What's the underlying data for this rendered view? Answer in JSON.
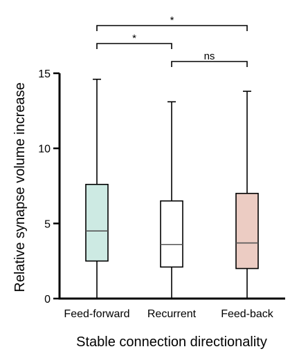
{
  "chart_data": {
    "type": "box",
    "xlabel": "Stable connection directionality",
    "ylabel": "Relative synapse volume increase",
    "ylim": [
      0,
      15
    ],
    "yticks": [
      0,
      5,
      10,
      15
    ],
    "categories": [
      "Feed-forward",
      "Recurrent",
      "Feed-back"
    ],
    "boxes": [
      {
        "category": "Feed-forward",
        "min": 0,
        "q1": 2.5,
        "median": 4.5,
        "q3": 7.6,
        "max": 14.6,
        "fill": "#cdeae3"
      },
      {
        "category": "Recurrent",
        "min": 0,
        "q1": 2.1,
        "median": 3.6,
        "q3": 6.5,
        "max": 13.1,
        "fill": "#ffffff"
      },
      {
        "category": "Feed-back",
        "min": 0,
        "q1": 2.0,
        "median": 3.7,
        "q3": 7.0,
        "max": 13.8,
        "fill": "#ecccc3"
      }
    ],
    "significance": [
      {
        "from": "Feed-forward",
        "to": "Feed-back",
        "label": "*"
      },
      {
        "from": "Feed-forward",
        "to": "Recurrent",
        "label": "*"
      },
      {
        "from": "Recurrent",
        "to": "Feed-back",
        "label": "ns"
      }
    ],
    "colors": {
      "axis": "#000000",
      "median": "#555555"
    }
  }
}
